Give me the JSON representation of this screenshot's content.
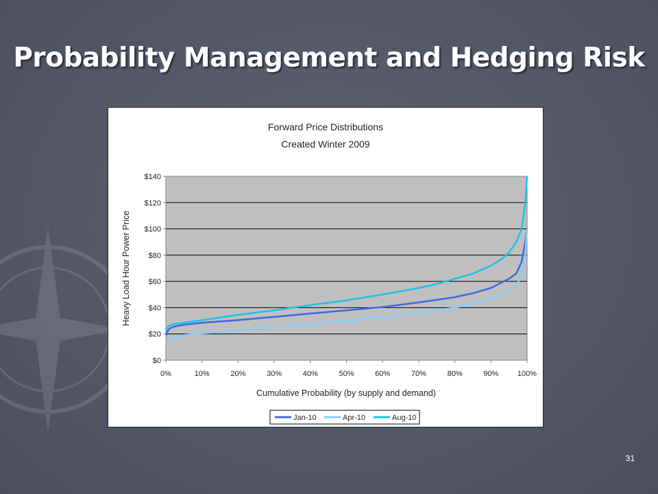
{
  "slide": {
    "title": "Probability Management and Hedging Risk",
    "number": "31"
  },
  "colors": {
    "background": "#555a69",
    "plot_area": "#c0c0c0",
    "jan": "#4169e1",
    "apr": "#87cefa",
    "aug": "#1fc1ea"
  },
  "chart_data": {
    "type": "line",
    "title": "Forward Price Distributions",
    "subtitle": "Created Winter 2009",
    "xlabel": "Cumulative Probability (by supply and demand)",
    "ylabel": "Heavy Load Hour Power Price",
    "xlim": [
      0,
      100
    ],
    "ylim": [
      0,
      140
    ],
    "x_ticks": [
      "0%",
      "10%",
      "20%",
      "30%",
      "40%",
      "50%",
      "60%",
      "70%",
      "80%",
      "90%",
      "100%"
    ],
    "y_ticks": [
      "$0",
      "$20",
      "$40",
      "$60",
      "$80",
      "$100",
      "$120",
      "$140"
    ],
    "grid": "horizontal",
    "legend_position": "bottom",
    "series": [
      {
        "name": "Jan-10",
        "color": "#4169e1",
        "x": [
          0,
          0.5,
          1,
          2,
          5,
          10,
          20,
          30,
          40,
          50,
          60,
          70,
          80,
          85,
          90,
          95,
          97,
          98.5,
          99.5,
          100
        ],
        "values": [
          19,
          22,
          24,
          25.5,
          27,
          28.5,
          30.5,
          33,
          35.5,
          38,
          40.5,
          44,
          48,
          51,
          55,
          62,
          66,
          75,
          90,
          100
        ]
      },
      {
        "name": "Apr-10",
        "color": "#87cefa",
        "x": [
          0,
          0.5,
          1,
          2,
          5,
          10,
          20,
          30,
          40,
          50,
          60,
          70,
          80,
          85,
          90,
          95,
          97,
          98.5,
          99.5,
          100
        ],
        "values": [
          13,
          15,
          16,
          17.5,
          19,
          20.5,
          22.5,
          25,
          27.5,
          30,
          33,
          36,
          40,
          43,
          47,
          53,
          57,
          64,
          80,
          100
        ]
      },
      {
        "name": "Aug-10",
        "color": "#1fc1ea",
        "x": [
          0,
          0.5,
          1,
          2,
          5,
          10,
          20,
          30,
          40,
          50,
          60,
          70,
          75,
          80,
          85,
          90,
          93,
          95,
          97,
          98.5,
          99.5,
          100
        ],
        "values": [
          22,
          25,
          26.5,
          27.5,
          28.5,
          30.5,
          34.5,
          38,
          42,
          45.5,
          50,
          55,
          58,
          62,
          66,
          72,
          77,
          82,
          90,
          100,
          120,
          140
        ]
      }
    ]
  }
}
